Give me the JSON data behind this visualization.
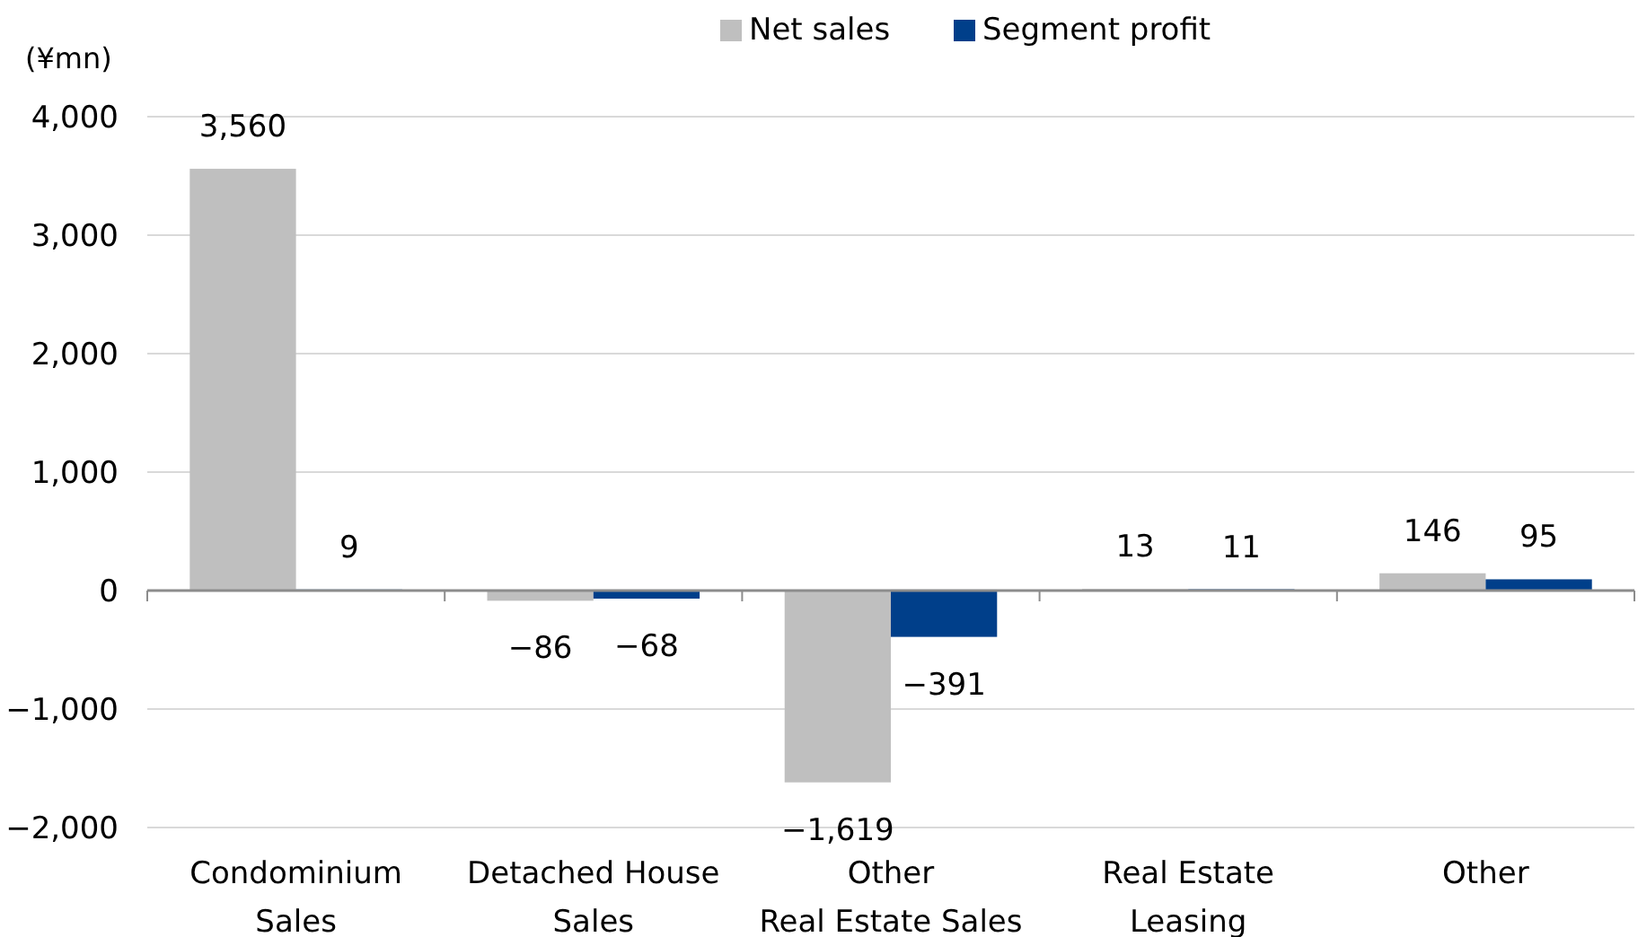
{
  "chart_data": {
    "type": "bar",
    "ylabel": "(¥mn)",
    "categories": [
      "Condominium\nSales",
      "Detached House\nSales",
      "Other\nReal Estate Sales",
      "Real Estate\nLeasing",
      "Other"
    ],
    "series": [
      {
        "name": "Net sales",
        "color": "#bfbfbf",
        "values": [
          3560,
          -86,
          -1619,
          13,
          146
        ],
        "value_labels": [
          "3,560",
          "−86",
          "−1,619",
          "13",
          "146"
        ]
      },
      {
        "name": "Segment profit",
        "color": "#003f8a",
        "values": [
          9,
          -68,
          -391,
          11,
          95
        ],
        "value_labels": [
          "9",
          "−68",
          "−391",
          "11",
          "95"
        ]
      }
    ],
    "ylim": [
      -2000,
      4000
    ],
    "yticks": [
      {
        "value": -2000,
        "label": "−2,000"
      },
      {
        "value": -1000,
        "label": "−1,000"
      },
      0,
      {
        "value": 1000,
        "label": "1,000"
      },
      {
        "value": 2000,
        "label": "2,000"
      },
      {
        "value": 3000,
        "label": "3,000"
      },
      {
        "value": 4000,
        "label": "4,000"
      }
    ],
    "grid": "y",
    "legend": "top"
  }
}
